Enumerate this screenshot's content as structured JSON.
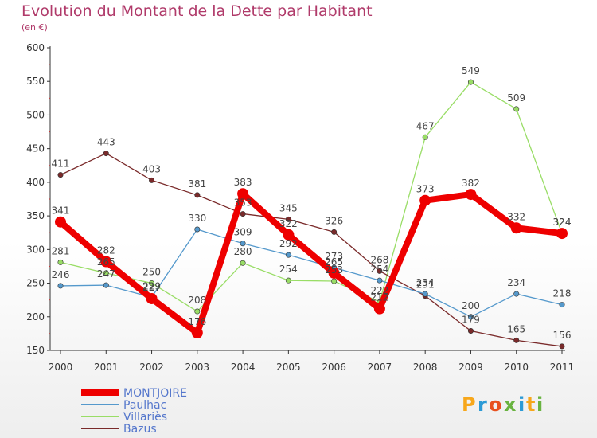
{
  "chart_data": {
    "type": "line",
    "title": "Evolution du Montant de la Dette par Habitant",
    "ylabel": "(en €)",
    "xlabel": "",
    "x": [
      "2000",
      "2001",
      "2002",
      "2003",
      "2004",
      "2005",
      "2006",
      "2007",
      "2008",
      "2009",
      "2010",
      "2011"
    ],
    "ylim": [
      150,
      600
    ],
    "yticks": [
      150,
      200,
      250,
      300,
      350,
      400,
      450,
      500,
      550,
      600
    ],
    "grid": false,
    "legend_position": "bottom-left",
    "series": [
      {
        "name": "Villariès",
        "color": "#99dd66",
        "values": [
          281,
          265,
          250,
          208,
          280,
          254,
          253,
          222,
          467,
          549,
          509,
          324
        ]
      },
      {
        "name": "Bazus",
        "color": "#7a2a2a",
        "values": [
          411,
          443,
          403,
          381,
          353,
          345,
          326,
          268,
          231,
          179,
          165,
          156
        ]
      },
      {
        "name": "Paulhac",
        "color": "#5599cc",
        "values": [
          246,
          247,
          229,
          330,
          309,
          292,
          273,
          254,
          234,
          200,
          234,
          218
        ]
      },
      {
        "name": "MONTJOIRE",
        "color": "#ee0000",
        "values": [
          341,
          282,
          227,
          176,
          383,
          322,
          265,
          212,
          373,
          382,
          332,
          324
        ]
      }
    ],
    "legend_order": [
      "MONTJOIRE",
      "Paulhac",
      "Villariès",
      "Bazus"
    ]
  },
  "logo": {
    "letters": [
      "P",
      "r",
      "o",
      "x",
      "i",
      "t",
      "i"
    ]
  }
}
